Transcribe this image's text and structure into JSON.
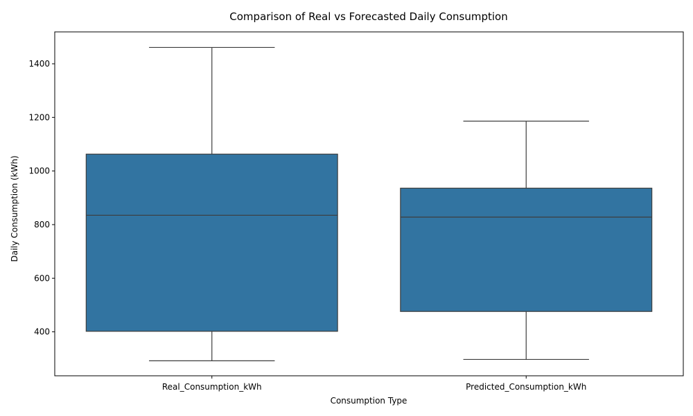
{
  "chart_data": {
    "type": "box",
    "title": "Comparison of Real vs Forecasted Daily Consumption",
    "xlabel": "Consumption Type",
    "ylabel": "Daily Consumption (kWh)",
    "categories": [
      "Real_Consumption_kWh",
      "Predicted_Consumption_kWh"
    ],
    "boxes": [
      {
        "min": 292,
        "q1": 402,
        "median": 835,
        "q3": 1063,
        "max": 1461
      },
      {
        "min": 297,
        "q1": 476,
        "median": 828,
        "q3": 936,
        "max": 1186
      }
    ],
    "yticks": [
      400,
      600,
      800,
      1000,
      1200,
      1400
    ],
    "ylim": [
      236,
      1519
    ],
    "grid": false,
    "colors": {
      "box_fill": "#3274a1",
      "line": "#3d3d3d",
      "axis": "#000000"
    }
  }
}
